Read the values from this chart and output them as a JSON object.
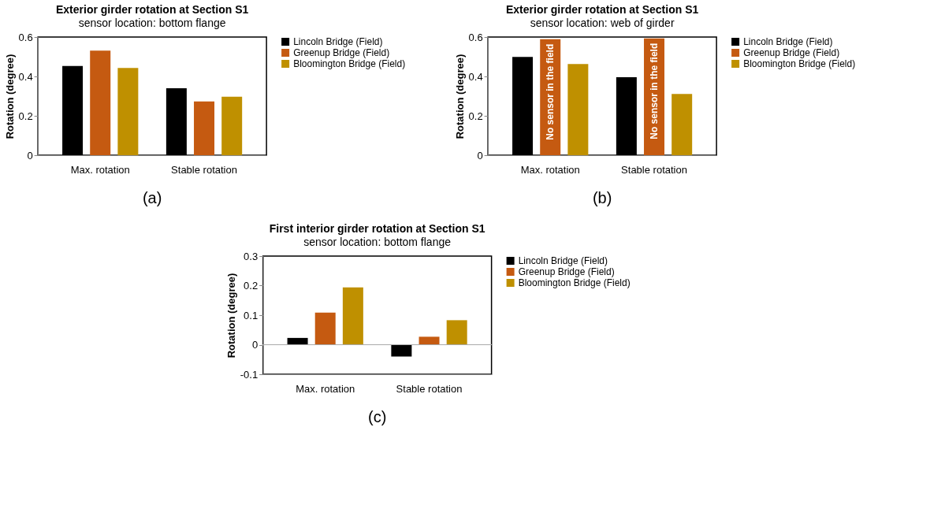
{
  "chart_data": [
    {
      "type": "bar",
      "title": "Exterior girder rotation at Section S1",
      "subtitle": "sensor location: bottom flange",
      "ylabel": "Rotation (degree)",
      "categories": [
        "Max. rotation",
        "Stable rotation"
      ],
      "series": [
        {
          "name": "Lincoln Bridge (Field)",
          "color": "#000000",
          "values": [
            0.453,
            0.34
          ]
        },
        {
          "name": "Greenup Bridge (Field)",
          "color": "#c55a11",
          "values": [
            0.531,
            0.273
          ]
        },
        {
          "name": "Bloomington Bridge (Field)",
          "color": "#bf9000",
          "values": [
            0.443,
            0.297
          ]
        }
      ],
      "ylim": [
        0,
        0.6
      ],
      "yticks": [
        0,
        0.2,
        0.4,
        0.6
      ],
      "grid": false,
      "legend": "right",
      "annotations": [
        "(a)"
      ]
    },
    {
      "type": "bar",
      "title": "Exterior girder rotation at Section S1",
      "subtitle": "sensor location: web of girder",
      "ylabel": "Rotation (degree)",
      "categories": [
        "Max. rotation",
        "Stable rotation"
      ],
      "series": [
        {
          "name": "Lincoln Bridge (Field)",
          "color": "#000000",
          "values": [
            0.499,
            0.396
          ]
        },
        {
          "name": "Greenup Bridge (Field)",
          "color": "#c55a11",
          "values": [
            0.589,
            0.593
          ],
          "value_labels": [
            "No sensor in the field",
            "No sensor in the field"
          ]
        },
        {
          "name": "Bloomington Bridge (Field)",
          "color": "#bf9000",
          "values": [
            0.463,
            0.311
          ]
        }
      ],
      "ylim": [
        0,
        0.6
      ],
      "yticks": [
        0,
        0.2,
        0.4,
        0.6
      ],
      "grid": false,
      "legend": "right",
      "annotations": [
        "(b)"
      ]
    },
    {
      "type": "bar",
      "title": "First interior girder rotation at Section S1",
      "subtitle": "sensor location: bottom flange",
      "ylabel": "Rotation (degree)",
      "categories": [
        "Max. rotation",
        "Stable rotation"
      ],
      "series": [
        {
          "name": "Lincoln Bridge (Field)",
          "color": "#000000",
          "values": [
            0.023,
            -0.04
          ]
        },
        {
          "name": "Greenup Bridge (Field)",
          "color": "#c55a11",
          "values": [
            0.109,
            0.027
          ]
        },
        {
          "name": "Bloomington Bridge (Field)",
          "color": "#bf9000",
          "values": [
            0.194,
            0.083
          ]
        }
      ],
      "ylim": [
        -0.1,
        0.3
      ],
      "yticks": [
        -0.1,
        0,
        0.1,
        0.2,
        0.3
      ],
      "ref_lines": [
        {
          "axis": "y",
          "value": 0,
          "color": "#aaaaaa"
        }
      ],
      "grid": false,
      "legend": "right",
      "annotations": [
        "(c)"
      ]
    }
  ]
}
